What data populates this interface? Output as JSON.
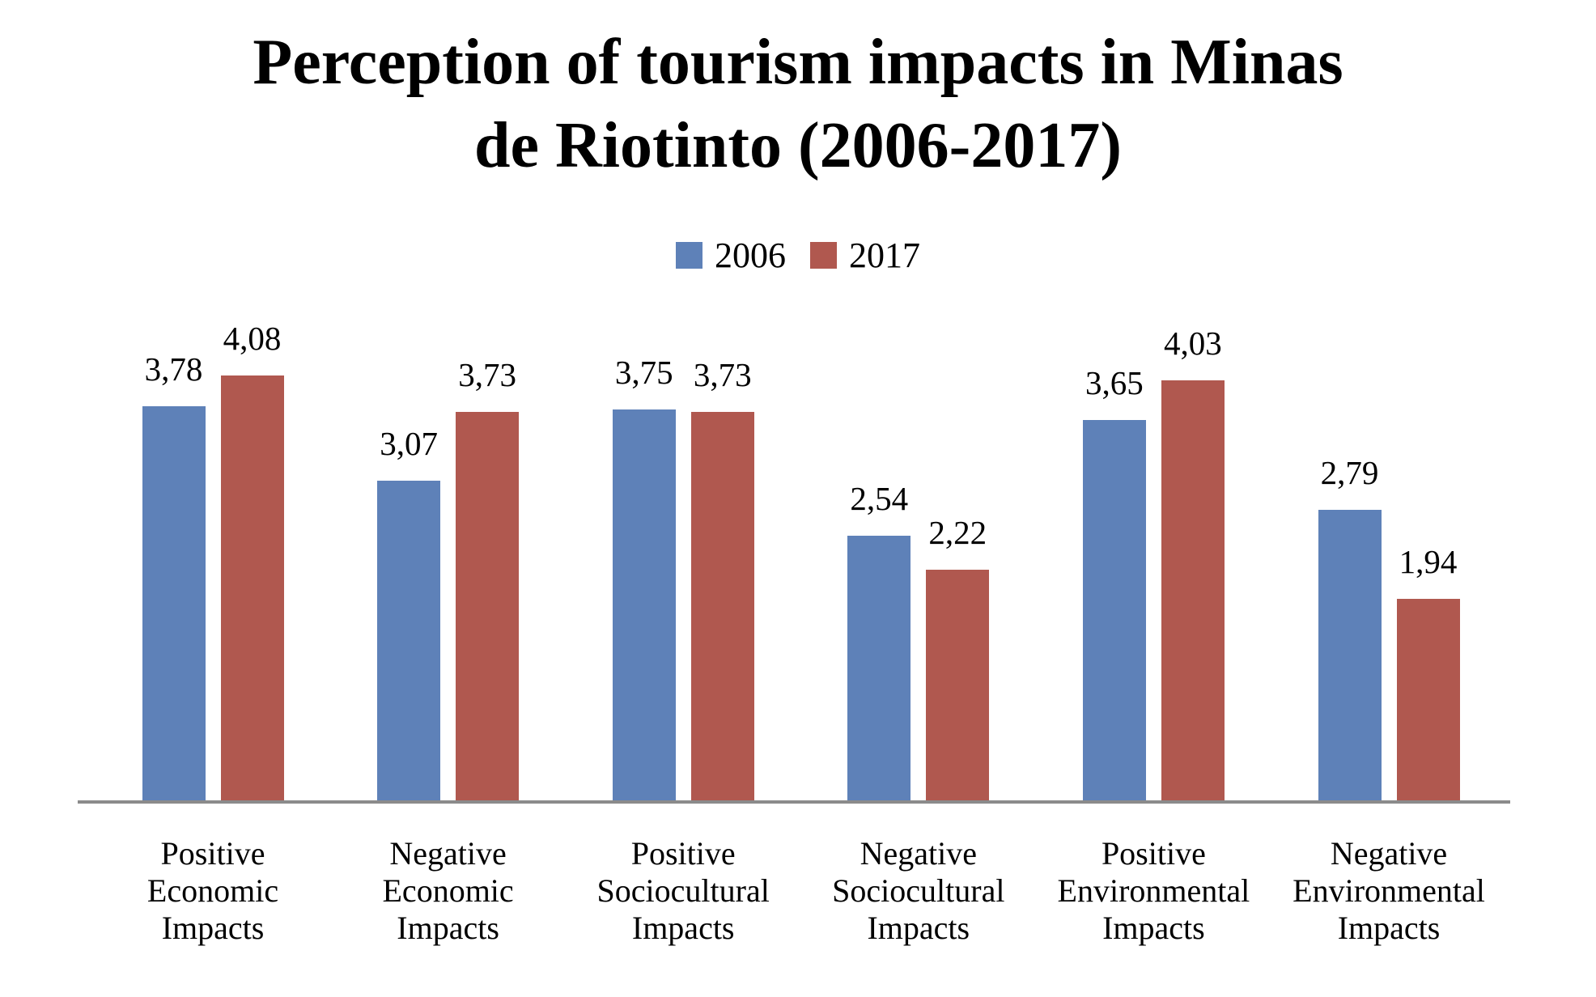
{
  "title": {
    "line1": "Perception of tourism impacts in Minas",
    "line2": "de Riotinto (2006-2017)"
  },
  "legend": {
    "items": [
      {
        "label": "2006",
        "color": "#5E81B8"
      },
      {
        "label": "2017",
        "color": "#B0584F"
      }
    ]
  },
  "chart_data": {
    "type": "bar",
    "title": "Perception of tourism impacts in Minas de Riotinto (2006-2017)",
    "categories": [
      "Positive Economic Impacts",
      "Negative Economic Impacts",
      "Positive Sociocultural Impacts",
      "Negative Sociocultural Impacts",
      "Positive Environmental Impacts",
      "Negative Environmental Impacts"
    ],
    "series": [
      {
        "name": "2006",
        "color": "#5E81B8",
        "values": [
          3.78,
          3.07,
          3.75,
          2.54,
          3.65,
          2.79
        ],
        "labels": [
          "3,78",
          "3,07",
          "3,75",
          "2,54",
          "3,65",
          "2,79"
        ]
      },
      {
        "name": "2017",
        "color": "#B0584F",
        "values": [
          4.08,
          3.73,
          3.73,
          2.22,
          4.03,
          1.94
        ],
        "labels": [
          "4,08",
          "3,73",
          "3,73",
          "2,22",
          "4,03",
          "1,94"
        ]
      }
    ],
    "ylim": [
      0,
      5
    ],
    "grid": false,
    "y_axis_visible": false,
    "legend_position": "top",
    "decimal_separator": ",",
    "axis_line_color": "#8B8B8B"
  }
}
